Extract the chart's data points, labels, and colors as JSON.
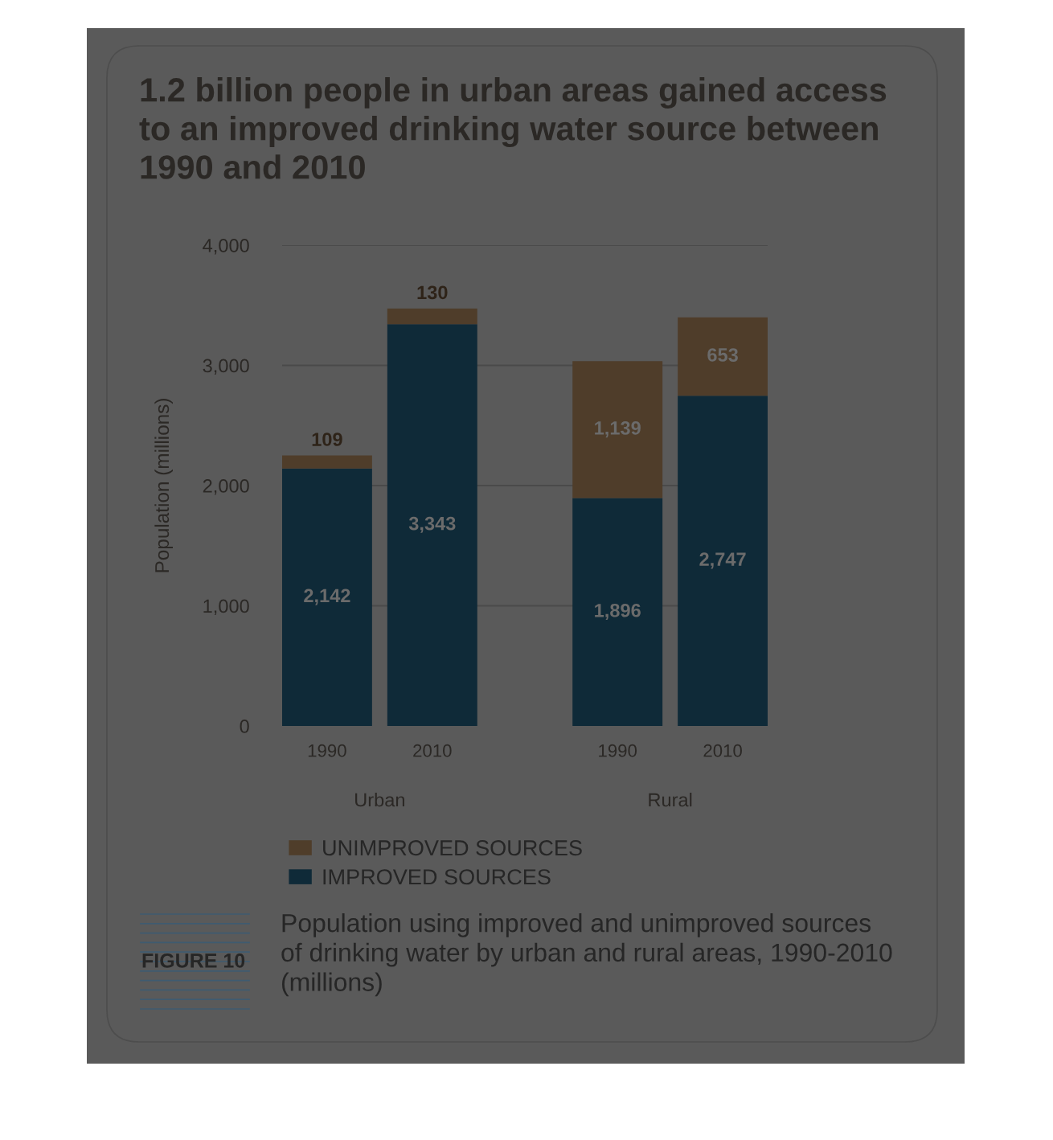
{
  "chart_data": {
    "type": "bar",
    "stacked": true,
    "title": "1.2 billion people in urban areas gained access to an improved drinking water source between 1990 and 2010",
    "ylabel": "Population (millions)",
    "categories": [
      "1990",
      "2010",
      "1990",
      "2010"
    ],
    "series": [
      {
        "name": "IMPROVED SOURCES",
        "color": "#0f2a38",
        "values": [
          2142,
          3343,
          1896,
          2747
        ],
        "value_labels": [
          "2,142",
          "3,343",
          "1,896",
          "2,747"
        ]
      },
      {
        "name": "UNIMPROVED SOURCES",
        "color": "#4f3d2a",
        "values": [
          109,
          130,
          1139,
          653
        ],
        "value_labels": [
          "109",
          "130",
          "1,139",
          "653"
        ]
      }
    ],
    "ylim": [
      0,
      4000
    ],
    "yticks": [
      0,
      {
        "value": 1000,
        "label": "1,000"
      },
      {
        "value": 2000,
        "label": "2,000"
      },
      {
        "value": 3000,
        "label": "3,000"
      },
      {
        "value": 4000,
        "label": "4,000"
      }
    ],
    "grid": "y",
    "legend": "bottom",
    "annotations": [
      "Urban",
      "Rural",
      "FIGURE 10",
      "Population using improved and unimproved sources of drinking water by urban and rural areas, 1990-2010 (millions)"
    ]
  }
}
